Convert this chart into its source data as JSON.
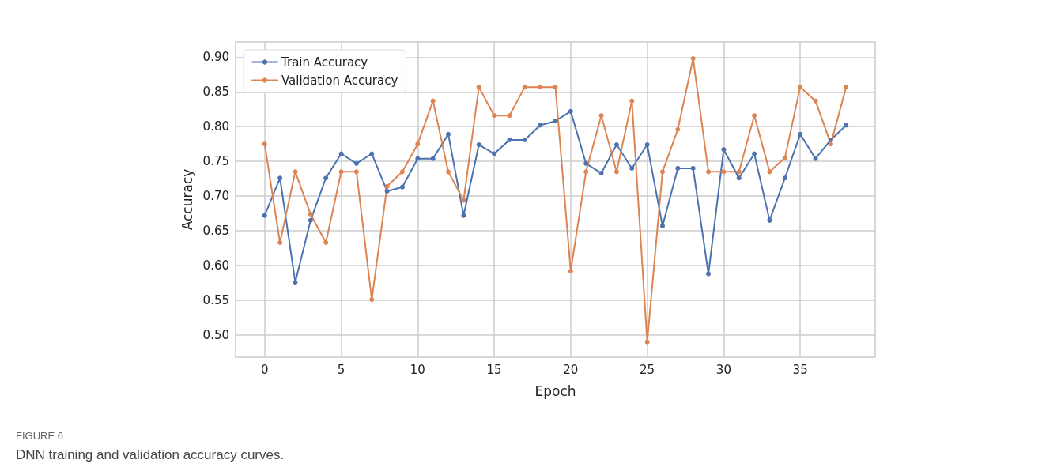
{
  "chart_data": {
    "type": "line",
    "xlabel": "Epoch",
    "ylabel": "Accuracy",
    "x": [
      0,
      1,
      2,
      3,
      4,
      5,
      6,
      7,
      8,
      9,
      10,
      11,
      12,
      13,
      14,
      15,
      16,
      17,
      18,
      19,
      20,
      21,
      22,
      23,
      24,
      25,
      26,
      27,
      28,
      29,
      30,
      31,
      32,
      33,
      34,
      35,
      36,
      37,
      38
    ],
    "series": [
      {
        "name": "Train Accuracy",
        "color": "#4c72b0",
        "values": [
          0.672,
          0.726,
          0.576,
          0.665,
          0.726,
          0.761,
          0.747,
          0.761,
          0.707,
          0.713,
          0.754,
          0.754,
          0.789,
          0.672,
          0.774,
          0.761,
          0.781,
          0.781,
          0.802,
          0.808,
          0.822,
          0.747,
          0.733,
          0.774,
          0.74,
          0.774,
          0.657,
          0.74,
          0.74,
          0.588,
          0.767,
          0.726,
          0.761,
          0.665,
          0.726,
          0.789,
          0.754,
          0.781,
          0.802
        ]
      },
      {
        "name": "Validation Accuracy",
        "color": "#dd8452",
        "values": [
          0.775,
          0.633,
          0.735,
          0.674,
          0.633,
          0.735,
          0.735,
          0.551,
          0.714,
          0.735,
          0.775,
          0.837,
          0.735,
          0.694,
          0.857,
          0.816,
          0.816,
          0.857,
          0.857,
          0.857,
          0.592,
          0.735,
          0.816,
          0.735,
          0.837,
          0.49,
          0.735,
          0.796,
          0.898,
          0.735,
          0.735,
          0.735,
          0.816,
          0.735,
          0.755,
          0.857,
          0.837,
          0.775,
          0.857
        ]
      }
    ],
    "xlim": [
      -1.9,
      39.9
    ],
    "xticks": [
      0,
      5,
      10,
      15,
      20,
      25,
      30,
      35
    ],
    "ylim": [
      0.468,
      0.922
    ],
    "yticks": [
      {
        "value": 0.5,
        "label": "0.50"
      },
      {
        "value": 0.55,
        "label": "0.55"
      },
      {
        "value": 0.6,
        "label": "0.60"
      },
      {
        "value": 0.65,
        "label": "0.65"
      },
      {
        "value": 0.7,
        "label": "0.70"
      },
      {
        "value": 0.75,
        "label": "0.75"
      },
      {
        "value": 0.8,
        "label": "0.80"
      },
      {
        "value": 0.85,
        "label": "0.85"
      },
      {
        "value": 0.9,
        "label": "0.90"
      }
    ],
    "grid": true,
    "legend": "top left",
    "marker": "circle",
    "line_style": "solid",
    "annotations": [
      "FIGURE 6",
      "DNN training and validation accuracy curves."
    ]
  }
}
